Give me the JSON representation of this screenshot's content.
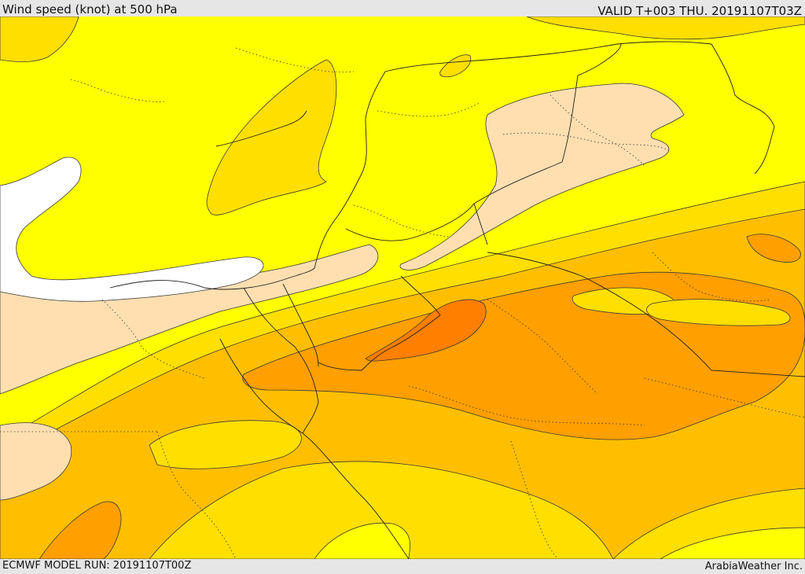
{
  "header": {
    "title": "Wind speed (knot) at 500 hPa",
    "valid_time": "VALID T+003 THU. 20191107T03Z"
  },
  "footer": {
    "model_run": "ECMWF MODEL RUN: 20191107T00Z",
    "provider": "ArabiaWeather Inc."
  },
  "colors": {
    "background": "#e6e6e6",
    "sea_white": "#ffffff",
    "band_peach": "#ffdfb0",
    "band_yellow": "#ffff00",
    "band_gold": "#ffdf00",
    "band_amber": "#ffbf00",
    "band_orange": "#ff9f00",
    "band_deep_orange": "#ff7f00",
    "contour_line": "#3a3a3a"
  }
}
